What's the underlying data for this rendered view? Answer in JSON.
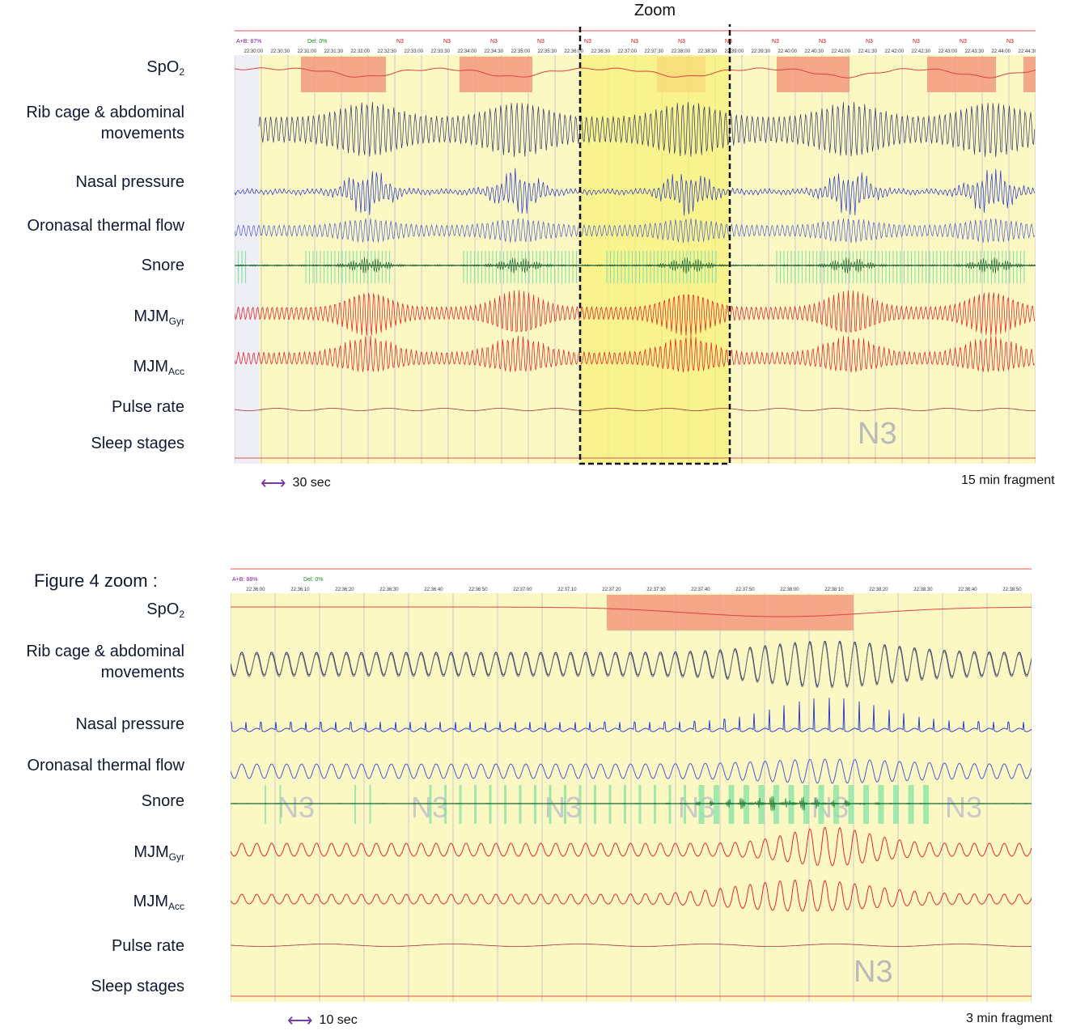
{
  "figure": {
    "top": {
      "labels": {
        "spo2": "SpO",
        "spo2_sub": "2",
        "rib1": "Rib cage & abdominal",
        "rib2": "movements",
        "nasal": "Nasal pressure",
        "thermal": "Oronasal thermal flow",
        "snore": "Snore",
        "mjmgyr": "MJM",
        "mjmgyr_sub": "Gyr",
        "mjmacc": "MJM",
        "mjmacc_sub": "Acc",
        "pulse": "Pulse rate",
        "sleep": "Sleep stages"
      },
      "zoom_label": "Zoom",
      "stage_label": "N3",
      "scale_label": "30 sec",
      "fragment_label": "15 min fragment",
      "header_left": "A+B: 87%",
      "header_del": "Del: 0%",
      "stage_marks": [
        "N3",
        "N3",
        "N3",
        "N3",
        "N3",
        "N3",
        "N3",
        "N3",
        "N3",
        "N3",
        "N3",
        "N3",
        "N3",
        "N3"
      ],
      "time_ticks": [
        "22:30:00",
        "22:30:30",
        "22:31:00",
        "22:31:30",
        "22:32:00",
        "22:32:30",
        "22:33:00",
        "22:33:30",
        "22:34:00",
        "22:34:30",
        "22:35:00",
        "22:35:30",
        "22:36:00",
        "22:36:30",
        "22:37:00",
        "22:37:30",
        "22:38:00",
        "22:38:30",
        "22:39:00",
        "22:39:30",
        "22:40:00",
        "22:40:30",
        "22:41:00",
        "22:41:30",
        "22:42:00",
        "22:42:30",
        "22:43:00",
        "22:43:30",
        "22:44:00",
        "22:44:30"
      ]
    },
    "bottom": {
      "title": "Figure 4 zoom :",
      "labels": {
        "spo2": "SpO",
        "spo2_sub": "2",
        "rib1": "Rib cage & abdominal",
        "rib2": "movements",
        "nasal": "Nasal pressure",
        "thermal": "Oronasal thermal flow",
        "snore": "Snore",
        "mjmgyr": "MJM",
        "mjmgyr_sub": "Gyr",
        "mjmacc": "MJM",
        "mjmacc_sub": "Acc",
        "pulse": "Pulse rate",
        "sleep": "Sleep stages"
      },
      "stage_label": "N3",
      "watermark_labels": [
        "N3",
        "N3",
        "N3",
        "N3",
        "N3",
        "N3"
      ],
      "scale_label": "10 sec",
      "fragment_label": "3 min fragment",
      "header_left": "A+B: 88%",
      "header_del": "Del: 0%",
      "time_ticks": [
        "22:36:00",
        "22:36:10",
        "22:36:20",
        "22:36:30",
        "22:36:40",
        "22:36:50",
        "22:37:00",
        "22:37:10",
        "22:37:20",
        "22:37:30",
        "22:37:40",
        "22:37:50",
        "22:38:00",
        "22:38:10",
        "22:38:20",
        "22:38:30",
        "22:38:40",
        "22:38:50"
      ]
    },
    "colors": {
      "panel_bg": "#fbf8c4",
      "zoom_bg": "#f7f27a",
      "desat": "#f39a7c",
      "rib": "#2a3270",
      "nasal": "#1f2fd0",
      "thermal": "#4a5ad6",
      "snore_bar": "#8be3a8",
      "snore_line": "#1a5a2a",
      "mjm": "#e8262a",
      "pulse": "#9b2f3a",
      "arrow": "#7a3aa5"
    }
  }
}
